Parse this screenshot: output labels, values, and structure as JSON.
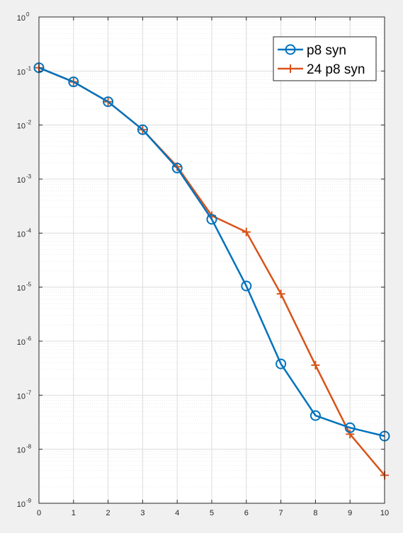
{
  "chart_data": {
    "type": "line",
    "title": "",
    "xlabel": "",
    "ylabel": "",
    "x": [
      0,
      1,
      2,
      3,
      4,
      5,
      6,
      7,
      8,
      9,
      10
    ],
    "xlim": [
      0,
      10
    ],
    "ylim": [
      1e-09,
      1
    ],
    "yscale": "log",
    "grid": true,
    "minor_grid": true,
    "legend_position": "top-right",
    "x_ticks": [
      "0",
      "1",
      "2",
      "3",
      "4",
      "5",
      "6",
      "7",
      "8",
      "9",
      "10"
    ],
    "y_ticks": [
      {
        "value": 1.0,
        "base": "10",
        "exp": "0"
      },
      {
        "value": 0.1,
        "base": "10",
        "exp": "-1"
      },
      {
        "value": 0.01,
        "base": "10",
        "exp": "-2"
      },
      {
        "value": 0.001,
        "base": "10",
        "exp": "-3"
      },
      {
        "value": 0.0001,
        "base": "10",
        "exp": "-4"
      },
      {
        "value": 1e-05,
        "base": "10",
        "exp": "-5"
      },
      {
        "value": 1e-06,
        "base": "10",
        "exp": "-6"
      },
      {
        "value": 1e-07,
        "base": "10",
        "exp": "-7"
      },
      {
        "value": 1e-08,
        "base": "10",
        "exp": "-8"
      },
      {
        "value": 1e-09,
        "base": "10",
        "exp": "-9"
      }
    ],
    "series": [
      {
        "name": "p8 syn",
        "color": "#0072BD",
        "marker": "circle",
        "values": [
          0.115,
          0.063,
          0.027,
          0.0082,
          0.0016,
          0.00018,
          1.05e-05,
          3.8e-07,
          4.2e-08,
          2.5e-08,
          1.75e-08
        ]
      },
      {
        "name": "24 p8 syn",
        "color": "#D95319",
        "marker": "plus",
        "values": [
          0.115,
          0.063,
          0.027,
          0.0082,
          0.0017,
          0.00021,
          0.000105,
          7.5e-06,
          3.6e-07,
          1.9e-08,
          3.3e-09
        ]
      }
    ]
  }
}
